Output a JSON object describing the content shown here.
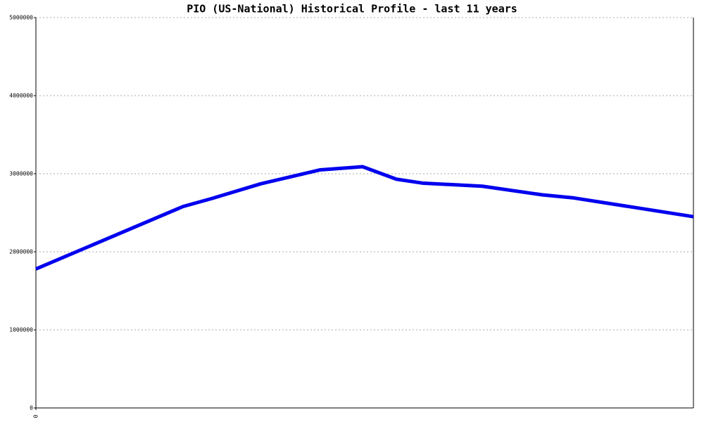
{
  "chart_data": {
    "type": "line",
    "title": "PIO (US-National) Historical Profile - last 11 years",
    "x": [
      0,
      209,
      249,
      319,
      404,
      464,
      512,
      549,
      634,
      719,
      764,
      934
    ],
    "series": [
      {
        "color": "#0000ee",
        "values": [
          1780000,
          2580000,
          2680000,
          2870000,
          3050000,
          3090000,
          2930000,
          2880000,
          2840000,
          2730000,
          2690000,
          2450000
        ]
      }
    ],
    "xlim": [
      0,
      934
    ],
    "xticks": [
      0
    ],
    "ylim": [
      0,
      5000000
    ],
    "yticks": [
      0,
      1000000,
      2000000,
      3000000,
      4000000,
      5000000
    ],
    "grid": true
  }
}
